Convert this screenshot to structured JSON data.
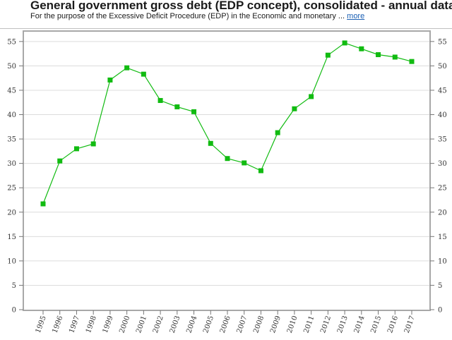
{
  "header": {
    "title": "General government gross debt (EDP concept), consolidated - annual data",
    "subtitle": "For the purpose of the Excessive Deficit Procedure (EDP) in the Economic and monetary ...",
    "more_label": "more"
  },
  "chart_data": {
    "type": "line",
    "title": "General government gross debt (EDP concept), consolidated - annual data",
    "categories": [
      "1995",
      "1996",
      "1997",
      "1998",
      "1999",
      "2000",
      "2001",
      "2002",
      "2003",
      "2004",
      "2005",
      "2006",
      "2007",
      "2008",
      "2009",
      "2010",
      "2011",
      "2012",
      "2013",
      "2014",
      "2015",
      "2016",
      "2017"
    ],
    "series": [
      {
        "values": [
          21.7,
          30.5,
          33.0,
          34.0,
          47.1,
          49.6,
          48.3,
          42.9,
          41.6,
          40.6,
          34.1,
          31.0,
          30.1,
          28.5,
          36.3,
          41.2,
          43.7,
          52.2,
          54.7,
          53.5,
          52.3,
          51.8,
          50.9
        ],
        "color": "#11bb11"
      }
    ],
    "yticks": [
      0,
      5,
      10,
      15,
      20,
      25,
      30,
      35,
      40,
      45,
      50,
      55
    ],
    "ylim": [
      0,
      57
    ],
    "grid": true,
    "right_axis": true,
    "xlabel": "",
    "ylabel": "",
    "colors": {
      "line": "#11bb11",
      "marker": "#11bb11",
      "grid": "#dcdcdc",
      "frame": "#a8a8a8"
    }
  }
}
